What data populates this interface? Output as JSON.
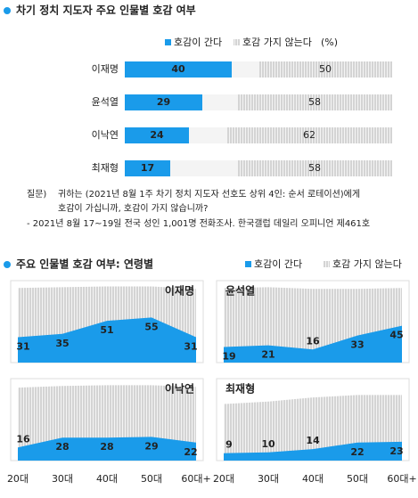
{
  "chart_data": [
    {
      "type": "diverging-bar",
      "title": "차기 정치 지도자 주요 인물별 호감 여부",
      "unit": "(%)",
      "categories": [
        "이재명",
        "윤석열",
        "이낙연",
        "최재형"
      ],
      "series": [
        {
          "name": "호감이 간다",
          "color": "#1a9bea",
          "values": [
            40,
            29,
            24,
            17
          ]
        },
        {
          "name": "호감 가지 않는다",
          "color": "#b4b4b4",
          "values": [
            50,
            58,
            62,
            58
          ]
        }
      ],
      "xlim": [
        0,
        100
      ],
      "notes": {
        "prefix": "질문)",
        "question": [
          "귀하는 (2021년 8월 1주 차기 정치 지도자 선호도 상위 4인: 순서 로테이션)에게",
          "호감이 가십니까, 호감이 가지 않습니까?"
        ],
        "source": "- 2021년 8월 17~19일 전국 성인 1,001명 전화조사. 한국갤럽 데일리 오피니언 제461호"
      }
    },
    {
      "type": "area-panels",
      "title": "주요 인물별 호감 여부: 연령별",
      "legend": [
        {
          "name": "호감이 간다",
          "color": "#1a9bea"
        },
        {
          "name": "호감 가지 않는다",
          "color": "#b4b4b4"
        }
      ],
      "categories": [
        "20대",
        "30대",
        "40대",
        "50대",
        "60대+"
      ],
      "ylim": [
        0,
        100
      ],
      "panels": [
        {
          "name": "이재명",
          "favorable": [
            31,
            35,
            51,
            55,
            31
          ],
          "unfavorable": [
            60,
            57,
            42,
            38,
            59
          ]
        },
        {
          "name": "윤석열",
          "favorable": [
            19,
            21,
            16,
            33,
            45
          ],
          "unfavorable": [
            72,
            71,
            74,
            57,
            46
          ]
        },
        {
          "name": "이낙연",
          "favorable": [
            16,
            28,
            28,
            29,
            22
          ],
          "unfavorable": [
            73,
            63,
            64,
            63,
            68
          ]
        },
        {
          "name": "최재형",
          "favorable": [
            9,
            10,
            14,
            22,
            23
          ],
          "unfavorable": [
            60,
            62,
            63,
            58,
            57
          ]
        }
      ]
    }
  ]
}
